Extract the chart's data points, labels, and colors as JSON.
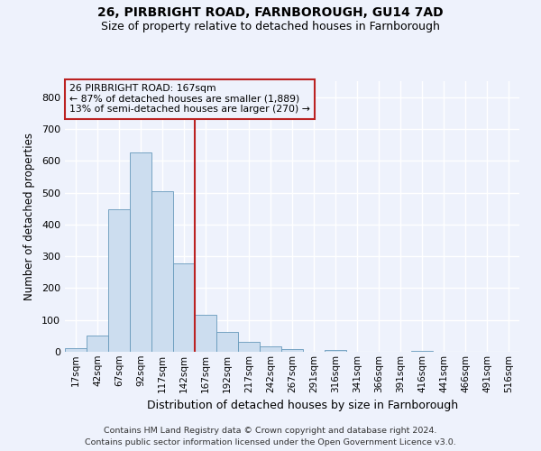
{
  "title1": "26, PIRBRIGHT ROAD, FARNBOROUGH, GU14 7AD",
  "title2": "Size of property relative to detached houses in Farnborough",
  "xlabel": "Distribution of detached houses by size in Farnborough",
  "ylabel": "Number of detached properties",
  "footer": "Contains HM Land Registry data © Crown copyright and database right 2024.\nContains public sector information licensed under the Open Government Licence v3.0.",
  "bin_labels": [
    "17sqm",
    "42sqm",
    "67sqm",
    "92sqm",
    "117sqm",
    "142sqm",
    "167sqm",
    "192sqm",
    "217sqm",
    "242sqm",
    "267sqm",
    "291sqm",
    "316sqm",
    "341sqm",
    "366sqm",
    "391sqm",
    "416sqm",
    "441sqm",
    "466sqm",
    "491sqm",
    "516sqm"
  ],
  "bar_values": [
    10,
    52,
    447,
    627,
    503,
    278,
    115,
    63,
    32,
    17,
    9,
    0,
    6,
    0,
    0,
    0,
    4,
    0,
    0,
    0,
    0
  ],
  "bar_color": "#ccddef",
  "bar_edge_color": "#6699bb",
  "highlight_line_color": "#bb2222",
  "annotation_text": "26 PIRBRIGHT ROAD: 167sqm\n← 87% of detached houses are smaller (1,889)\n13% of semi-detached houses are larger (270) →",
  "annotation_box_color": "#bb2222",
  "ylim": [
    0,
    850
  ],
  "yticks": [
    0,
    100,
    200,
    300,
    400,
    500,
    600,
    700,
    800
  ],
  "background_color": "#eef2fc",
  "grid_color": "#ffffff",
  "highlight_bin_index": 6
}
